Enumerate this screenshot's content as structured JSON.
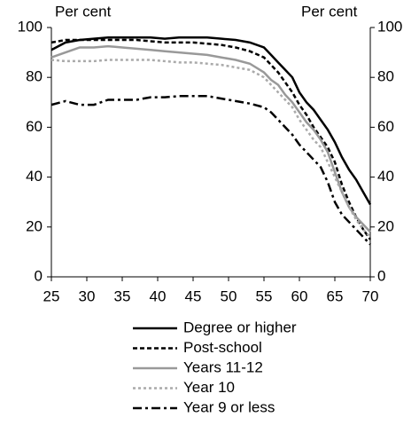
{
  "chart_data": {
    "type": "line",
    "y_label": "Per cent",
    "y2_label": "Per cent",
    "x": [
      25,
      27,
      29,
      31,
      33,
      35,
      37,
      39,
      41,
      43,
      45,
      47,
      49,
      51,
      53,
      55,
      56,
      57,
      58,
      59,
      60,
      61,
      62,
      63,
      64,
      65,
      66,
      67,
      68,
      69,
      70
    ],
    "xlim": [
      25,
      70
    ],
    "xticks": [
      25,
      30,
      35,
      40,
      45,
      50,
      55,
      60,
      65,
      70
    ],
    "ylim": [
      0,
      100
    ],
    "yticks": [
      0,
      20,
      40,
      60,
      80,
      100
    ],
    "y2lim": [
      0,
      100
    ],
    "y2ticks": [
      0,
      20,
      40,
      60,
      80,
      100
    ],
    "series": [
      {
        "name": "Degree or higher",
        "color": "#000000",
        "dash": "solid",
        "values": [
          91,
          94,
          95,
          95.5,
          96,
          96,
          96,
          96,
          95.5,
          96,
          96,
          96,
          95.5,
          95,
          94,
          92,
          89,
          86,
          83,
          80,
          74,
          70,
          67,
          63,
          59,
          54,
          48,
          43,
          39,
          34,
          29
        ]
      },
      {
        "name": "Post-school",
        "color": "#000000",
        "dash": "dashed",
        "values": [
          94,
          95,
          95,
          95,
          95,
          95,
          95,
          94.5,
          94,
          94,
          94,
          93.5,
          93,
          92,
          90.5,
          88,
          85,
          82,
          78,
          74,
          69,
          65,
          60,
          56,
          52,
          46,
          37,
          30,
          24,
          19,
          15
        ]
      },
      {
        "name": "Years 11-12",
        "color": "#999999",
        "dash": "solid",
        "values": [
          88,
          90,
          92,
          92,
          92.5,
          92,
          91.5,
          91,
          90.5,
          90,
          89.5,
          89,
          88,
          87,
          85.5,
          82,
          79,
          77,
          73,
          70,
          66,
          62,
          59,
          55,
          50,
          42,
          34,
          28,
          24,
          21,
          18
        ]
      },
      {
        "name": "Year 10",
        "color": "#aaaaaa",
        "dash": "dotted",
        "values": [
          87,
          86.5,
          86.5,
          86.5,
          87,
          87,
          87,
          87,
          86.5,
          86,
          86,
          85.5,
          85,
          84,
          83,
          80,
          77,
          74,
          71,
          68,
          63,
          59,
          55,
          52,
          46,
          40,
          34,
          28,
          23,
          19,
          16
        ]
      },
      {
        "name": "Year 9 or less",
        "color": "#000000",
        "dash": "dashdot",
        "values": [
          69,
          70.5,
          69,
          69,
          71,
          71,
          71,
          72,
          72,
          72.5,
          72.5,
          72.5,
          71.5,
          70.5,
          69.5,
          68,
          66,
          63,
          60,
          57,
          53,
          50,
          47,
          44,
          38,
          30,
          25,
          22,
          19,
          16,
          13
        ]
      }
    ]
  }
}
